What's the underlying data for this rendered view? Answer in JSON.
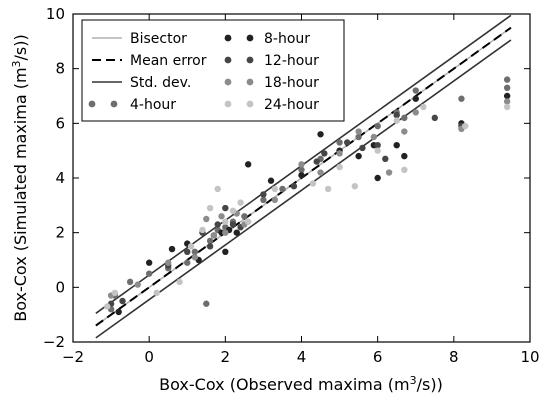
{
  "chart_data": {
    "type": "scatter",
    "title": "",
    "xlabel_main": "Box-Cox (Observed maxima (m",
    "xlabel_sup": "3",
    "xlabel_tail": "/s))",
    "ylabel_main": "Box-Cox (Simulated maxima (m",
    "ylabel_sup": "3",
    "ylabel_tail": "/s))",
    "xlim": [
      -2,
      10
    ],
    "ylim": [
      -2,
      10
    ],
    "x_ticks": [
      "−2",
      "0",
      "2",
      "4",
      "6",
      "8",
      "10"
    ],
    "y_ticks": [
      "−2",
      "0",
      "2",
      "4",
      "6",
      "8",
      "10"
    ],
    "grid": false,
    "legend_position": "top-left",
    "lines": [
      {
        "name": "Bisector",
        "style": "solid",
        "color": "#b0b0b0",
        "slope": 1.0,
        "intercept": 0.0
      },
      {
        "name": "Mean error",
        "style": "dashed",
        "color": "#000000",
        "slope": 1.0,
        "intercept": 0.0
      },
      {
        "name": "Std. dev.",
        "style": "solid",
        "color": "#333333",
        "slope": 1.0,
        "intercept": 0.45
      },
      {
        "name": "",
        "style": "solid",
        "color": "#333333",
        "slope": 1.0,
        "intercept": -0.45
      }
    ],
    "series": [
      {
        "name": "4-hour",
        "color": "#6e6e6e",
        "points": [
          [
            -1.0,
            -0.8
          ],
          [
            -0.9,
            -0.3
          ],
          [
            -0.5,
            0.2
          ],
          [
            0.0,
            0.5
          ],
          [
            0.5,
            0.7
          ],
          [
            1.0,
            0.9
          ],
          [
            1.2,
            1.3
          ],
          [
            1.5,
            -0.6
          ],
          [
            1.6,
            1.7
          ],
          [
            1.8,
            2.1
          ],
          [
            2.0,
            2.2
          ],
          [
            2.2,
            2.4
          ],
          [
            2.5,
            2.6
          ],
          [
            3.0,
            3.2
          ],
          [
            3.5,
            3.6
          ],
          [
            4.0,
            4.3
          ],
          [
            4.5,
            4.7
          ],
          [
            5.0,
            5.3
          ],
          [
            5.5,
            5.5
          ],
          [
            6.0,
            5.9
          ],
          [
            6.5,
            6.4
          ],
          [
            6.7,
            6.2
          ],
          [
            7.0,
            7.2
          ],
          [
            8.2,
            6.9
          ],
          [
            9.4,
            7.6
          ],
          [
            9.4,
            7.3
          ]
        ]
      },
      {
        "name": "8-hour",
        "color": "#222222",
        "points": [
          [
            -0.8,
            -0.9
          ],
          [
            0.0,
            0.9
          ],
          [
            0.6,
            1.4
          ],
          [
            1.0,
            1.6
          ],
          [
            1.3,
            1.0
          ],
          [
            1.7,
            1.9
          ],
          [
            1.9,
            2.0
          ],
          [
            2.0,
            1.3
          ],
          [
            2.1,
            2.1
          ],
          [
            2.3,
            2.0
          ],
          [
            2.6,
            4.5
          ],
          [
            3.2,
            3.9
          ],
          [
            4.0,
            4.1
          ],
          [
            4.5,
            5.6
          ],
          [
            5.0,
            5.0
          ],
          [
            5.5,
            4.8
          ],
          [
            5.9,
            5.2
          ],
          [
            6.0,
            4.0
          ],
          [
            6.5,
            5.2
          ],
          [
            6.7,
            4.8
          ],
          [
            7.0,
            6.9
          ],
          [
            8.2,
            6.0
          ],
          [
            9.4,
            7.0
          ]
        ]
      },
      {
        "name": "12-hour",
        "color": "#464646",
        "points": [
          [
            -1.0,
            -0.6
          ],
          [
            -0.7,
            -0.5
          ],
          [
            0.5,
            0.8
          ],
          [
            1.0,
            1.3
          ],
          [
            1.4,
            2.0
          ],
          [
            1.6,
            1.5
          ],
          [
            1.8,
            2.3
          ],
          [
            2.0,
            2.9
          ],
          [
            2.2,
            2.3
          ],
          [
            2.4,
            2.2
          ],
          [
            3.0,
            3.4
          ],
          [
            3.8,
            3.7
          ],
          [
            4.4,
            4.6
          ],
          [
            4.6,
            4.9
          ],
          [
            5.2,
            5.3
          ],
          [
            5.6,
            5.1
          ],
          [
            6.0,
            5.2
          ],
          [
            6.2,
            4.7
          ],
          [
            6.5,
            6.3
          ],
          [
            7.5,
            6.2
          ],
          [
            8.2,
            5.9
          ]
        ]
      },
      {
        "name": "18-hour",
        "color": "#8c8c8c",
        "points": [
          [
            -1.0,
            -0.3
          ],
          [
            -0.3,
            0.1
          ],
          [
            0.5,
            0.9
          ],
          [
            1.2,
            1.1
          ],
          [
            1.5,
            2.5
          ],
          [
            1.7,
            1.9
          ],
          [
            1.9,
            2.6
          ],
          [
            2.0,
            2.0
          ],
          [
            2.3,
            2.7
          ],
          [
            2.5,
            2.3
          ],
          [
            3.3,
            3.2
          ],
          [
            4.0,
            4.5
          ],
          [
            4.5,
            4.2
          ],
          [
            5.0,
            4.9
          ],
          [
            5.5,
            5.7
          ],
          [
            5.9,
            5.5
          ],
          [
            6.3,
            4.2
          ],
          [
            6.7,
            5.7
          ],
          [
            7.0,
            6.4
          ],
          [
            8.2,
            5.8
          ],
          [
            9.4,
            6.8
          ]
        ]
      },
      {
        "name": "24-hour",
        "color": "#c4c4c4",
        "points": [
          [
            -1.1,
            -0.7
          ],
          [
            -0.9,
            -0.2
          ],
          [
            0.2,
            -0.2
          ],
          [
            0.8,
            0.2
          ],
          [
            1.1,
            1.5
          ],
          [
            1.4,
            2.1
          ],
          [
            1.6,
            2.9
          ],
          [
            1.8,
            3.6
          ],
          [
            2.0,
            2.4
          ],
          [
            2.2,
            2.8
          ],
          [
            2.4,
            3.1
          ],
          [
            2.6,
            2.4
          ],
          [
            3.3,
            3.6
          ],
          [
            4.3,
            3.8
          ],
          [
            4.7,
            3.6
          ],
          [
            5.0,
            4.4
          ],
          [
            5.4,
            3.7
          ],
          [
            6.0,
            5.0
          ],
          [
            6.5,
            6.1
          ],
          [
            6.7,
            4.3
          ],
          [
            7.2,
            6.6
          ],
          [
            8.3,
            5.9
          ],
          [
            9.4,
            6.6
          ]
        ]
      }
    ]
  }
}
